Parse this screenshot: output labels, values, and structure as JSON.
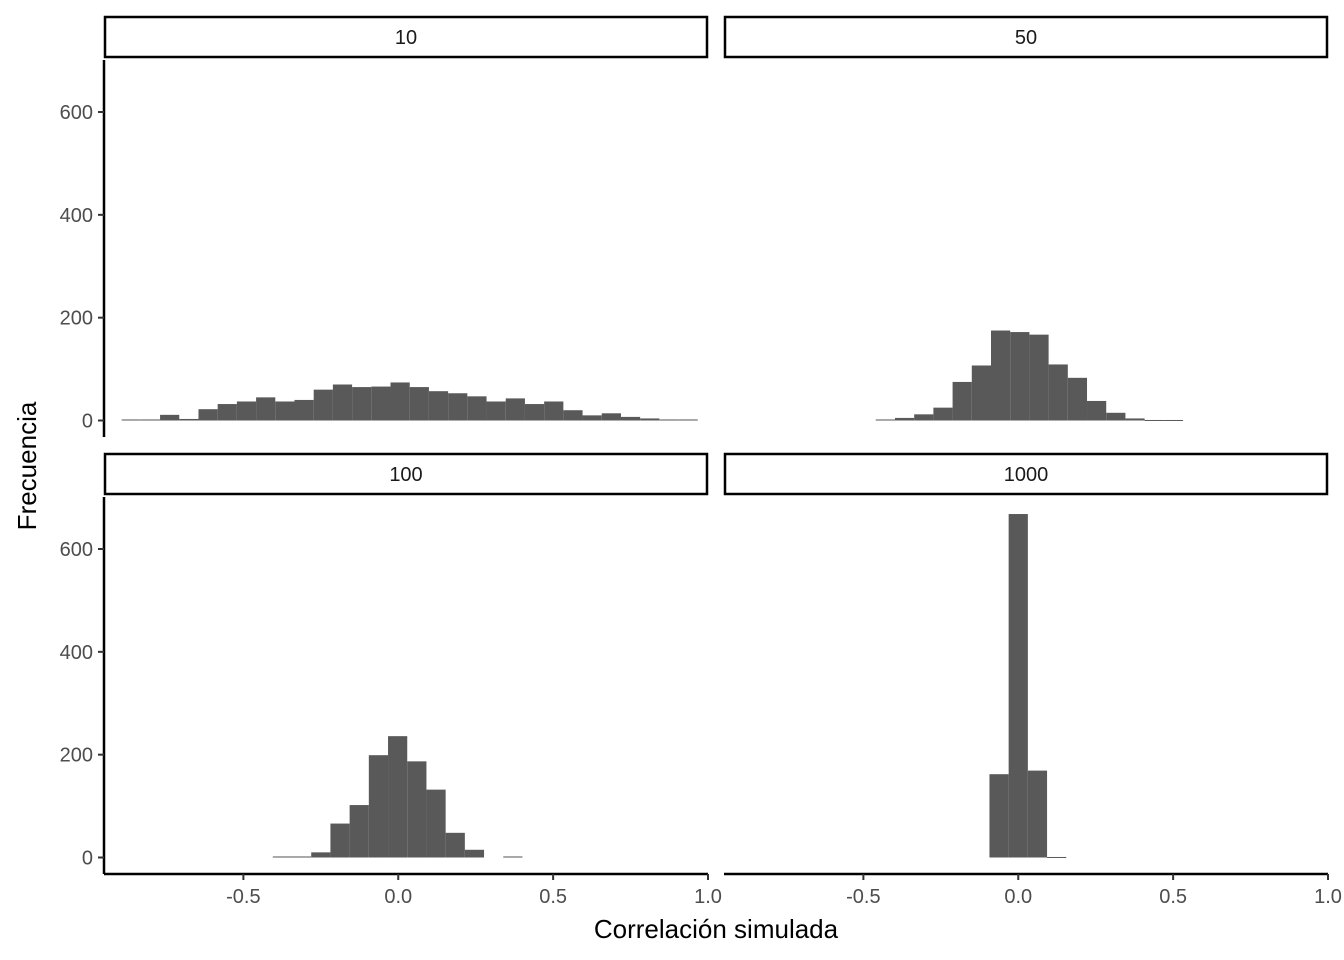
{
  "chart_data": {
    "type": "bar",
    "subtype": "faceted-histogram",
    "xlabel": "Correlación simulada",
    "ylabel": "Frecuencia",
    "xlim": [
      -0.95,
      1.0
    ],
    "ylim": [
      0,
      700
    ],
    "x_ticks": [
      -0.5,
      0.0,
      0.5,
      1.0
    ],
    "x_tick_labels": [
      "-0.5",
      "0.0",
      "0.5",
      "1.0"
    ],
    "y_ticks": [
      0,
      200,
      400,
      600
    ],
    "y_tick_labels": [
      "0",
      "200",
      "400",
      "600"
    ],
    "bar_color": "#595959",
    "grid": false,
    "panels": [
      {
        "label": "10",
        "bins": [
          {
            "x0": -0.893,
            "x1": -0.831,
            "count": 2
          },
          {
            "x0": -0.831,
            "x1": -0.769,
            "count": 2
          },
          {
            "x0": -0.769,
            "x1": -0.707,
            "count": 11
          },
          {
            "x0": -0.707,
            "x1": -0.645,
            "count": 3
          },
          {
            "x0": -0.645,
            "x1": -0.583,
            "count": 22
          },
          {
            "x0": -0.583,
            "x1": -0.521,
            "count": 32
          },
          {
            "x0": -0.521,
            "x1": -0.459,
            "count": 37
          },
          {
            "x0": -0.459,
            "x1": -0.397,
            "count": 45
          },
          {
            "x0": -0.397,
            "x1": -0.335,
            "count": 37
          },
          {
            "x0": -0.335,
            "x1": -0.273,
            "count": 40
          },
          {
            "x0": -0.273,
            "x1": -0.211,
            "count": 60
          },
          {
            "x0": -0.211,
            "x1": -0.149,
            "count": 70
          },
          {
            "x0": -0.149,
            "x1": -0.087,
            "count": 65
          },
          {
            "x0": -0.087,
            "x1": -0.025,
            "count": 66
          },
          {
            "x0": -0.025,
            "x1": 0.037,
            "count": 74
          },
          {
            "x0": 0.037,
            "x1": 0.099,
            "count": 65
          },
          {
            "x0": 0.099,
            "x1": 0.161,
            "count": 57
          },
          {
            "x0": 0.161,
            "x1": 0.223,
            "count": 53
          },
          {
            "x0": 0.223,
            "x1": 0.285,
            "count": 47
          },
          {
            "x0": 0.285,
            "x1": 0.347,
            "count": 37
          },
          {
            "x0": 0.347,
            "x1": 0.409,
            "count": 43
          },
          {
            "x0": 0.409,
            "x1": 0.471,
            "count": 32
          },
          {
            "x0": 0.471,
            "x1": 0.533,
            "count": 37
          },
          {
            "x0": 0.533,
            "x1": 0.595,
            "count": 20
          },
          {
            "x0": 0.595,
            "x1": 0.657,
            "count": 10
          },
          {
            "x0": 0.657,
            "x1": 0.719,
            "count": 14
          },
          {
            "x0": 0.719,
            "x1": 0.781,
            "count": 7
          },
          {
            "x0": 0.781,
            "x1": 0.843,
            "count": 4
          },
          {
            "x0": 0.843,
            "x1": 0.905,
            "count": 2
          },
          {
            "x0": 0.905,
            "x1": 0.967,
            "count": 2
          }
        ]
      },
      {
        "label": "50",
        "bins": [
          {
            "x0": -0.46,
            "x1": -0.398,
            "count": 2
          },
          {
            "x0": -0.398,
            "x1": -0.336,
            "count": 5
          },
          {
            "x0": -0.336,
            "x1": -0.274,
            "count": 12
          },
          {
            "x0": -0.274,
            "x1": -0.212,
            "count": 25
          },
          {
            "x0": -0.212,
            "x1": -0.15,
            "count": 75
          },
          {
            "x0": -0.15,
            "x1": -0.088,
            "count": 107
          },
          {
            "x0": -0.088,
            "x1": -0.026,
            "count": 175
          },
          {
            "x0": -0.026,
            "x1": 0.036,
            "count": 172
          },
          {
            "x0": 0.036,
            "x1": 0.098,
            "count": 167
          },
          {
            "x0": 0.098,
            "x1": 0.16,
            "count": 109
          },
          {
            "x0": 0.16,
            "x1": 0.222,
            "count": 83
          },
          {
            "x0": 0.222,
            "x1": 0.284,
            "count": 38
          },
          {
            "x0": 0.284,
            "x1": 0.346,
            "count": 15
          },
          {
            "x0": 0.346,
            "x1": 0.408,
            "count": 4
          },
          {
            "x0": 0.408,
            "x1": 0.47,
            "count": 1
          },
          {
            "x0": 0.47,
            "x1": 0.532,
            "count": 1
          }
        ]
      },
      {
        "label": "100",
        "bins": [
          {
            "x0": -0.405,
            "x1": -0.343,
            "count": 2
          },
          {
            "x0": -0.343,
            "x1": -0.281,
            "count": 2
          },
          {
            "x0": -0.281,
            "x1": -0.219,
            "count": 10
          },
          {
            "x0": -0.219,
            "x1": -0.157,
            "count": 66
          },
          {
            "x0": -0.157,
            "x1": -0.095,
            "count": 102
          },
          {
            "x0": -0.095,
            "x1": -0.033,
            "count": 199
          },
          {
            "x0": -0.033,
            "x1": 0.029,
            "count": 236
          },
          {
            "x0": 0.029,
            "x1": 0.091,
            "count": 187
          },
          {
            "x0": 0.091,
            "x1": 0.153,
            "count": 132
          },
          {
            "x0": 0.153,
            "x1": 0.215,
            "count": 48
          },
          {
            "x0": 0.215,
            "x1": 0.277,
            "count": 15
          },
          {
            "x0": 0.277,
            "x1": 0.339,
            "count": 0
          },
          {
            "x0": 0.339,
            "x1": 0.401,
            "count": 2
          }
        ]
      },
      {
        "label": "1000",
        "bins": [
          {
            "x0": -0.093,
            "x1": -0.031,
            "count": 162
          },
          {
            "x0": -0.031,
            "x1": 0.031,
            "count": 668
          },
          {
            "x0": 0.031,
            "x1": 0.093,
            "count": 169
          },
          {
            "x0": 0.093,
            "x1": 0.155,
            "count": 1
          }
        ]
      }
    ]
  }
}
